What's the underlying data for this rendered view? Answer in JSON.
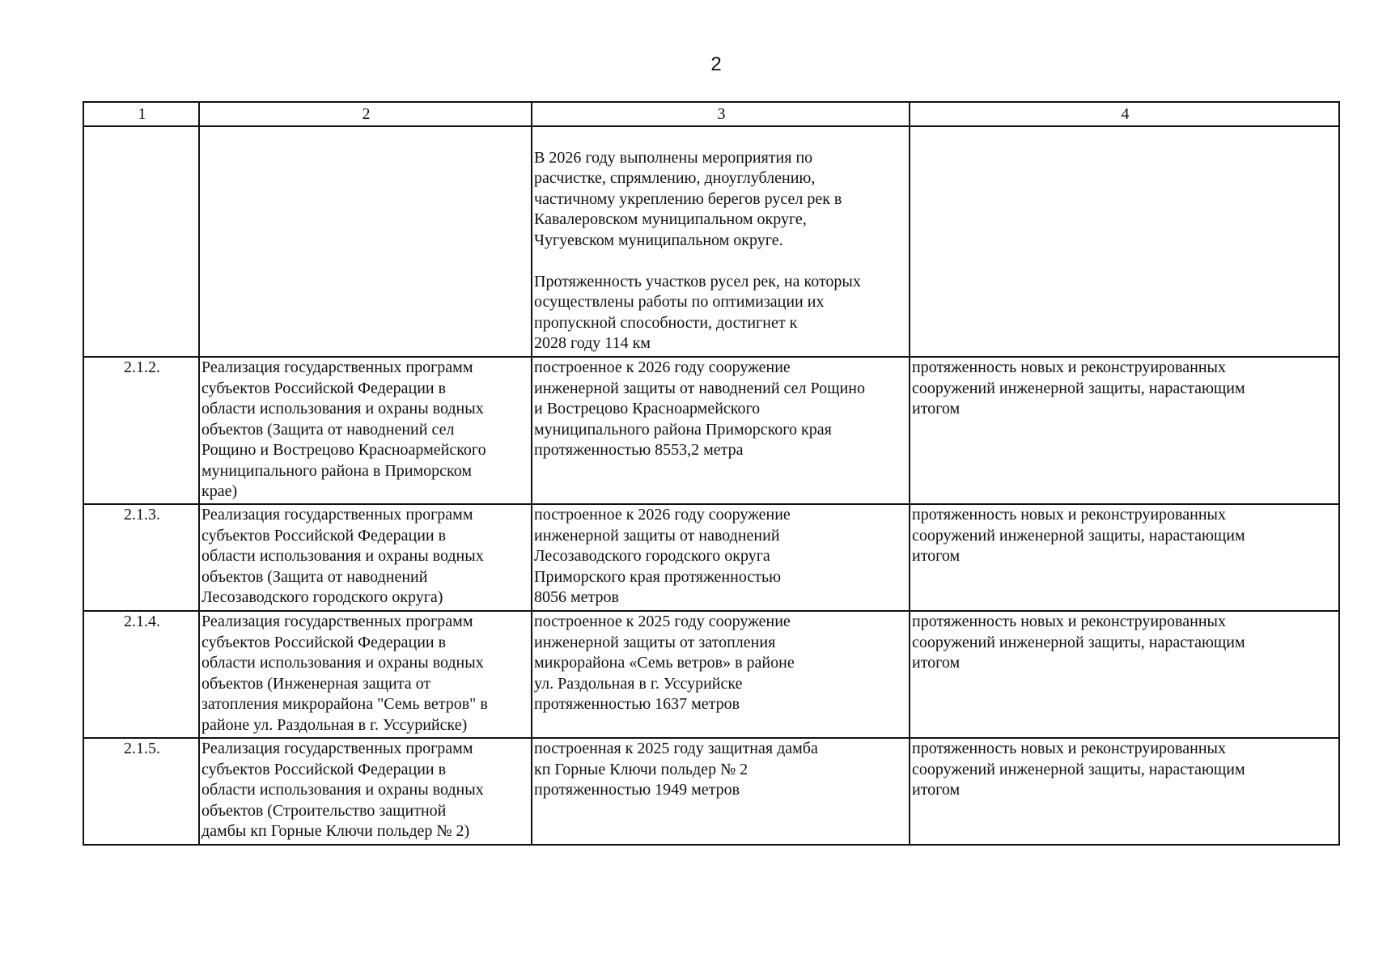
{
  "page_number": "2",
  "table": {
    "headers": [
      "1",
      "2",
      "3",
      "4"
    ],
    "rows": [
      {
        "number": "",
        "program": [],
        "result": [
          "",
          "В 2026 году выполнены мероприятия по",
          "расчистке, спрямлению, дноуглублению,",
          "частичному укреплению берегов русел рек в",
          "Кавалеровском муниципальном округе,",
          "Чугуевском муниципальном округе.",
          "",
          "Протяженность участков русел рек, на которых",
          "осуществлены работы по оптимизации их",
          "пропускной способности, достигнет к",
          "2028 году 114 км"
        ],
        "indicator": []
      },
      {
        "number": "2.1.2.",
        "program": [
          "Реализация государственных программ",
          "субъектов Российской Федерации в",
          "области использования и охраны водных",
          "объектов (Защита от наводнений сел",
          "Рощино и Вострецово Красноармейского",
          "муниципального района в Приморском",
          "крае)"
        ],
        "result": [
          "построенное к 2026 году сооружение",
          "инженерной защиты от наводнений сел Рощино",
          "и Вострецово Красноармейского",
          "муниципального района Приморского края",
          "протяженностью 8553,2 метра"
        ],
        "indicator": [
          "протяженность новых и реконструированных",
          "сооружений инженерной защиты, нарастающим",
          "итогом"
        ]
      },
      {
        "number": "2.1.3.",
        "program": [
          "Реализация государственных программ",
          "субъектов Российской Федерации в",
          "области использования и охраны водных",
          "объектов (Защита от наводнений",
          "Лесозаводского городского округа)"
        ],
        "result": [
          "построенное к 2026 году сооружение",
          "инженерной защиты от наводнений",
          "Лесозаводского городского округа",
          "Приморского края протяженностью",
          "8056 метров"
        ],
        "indicator": [
          "протяженность новых и реконструированных",
          "сооружений инженерной защиты, нарастающим",
          "итогом"
        ]
      },
      {
        "number": "2.1.4.",
        "program": [
          "Реализация государственных программ",
          "субъектов Российской Федерации в",
          "области использования и охраны водных",
          "объектов (Инженерная защита от",
          "затопления микрорайона \"Семь ветров\" в",
          "районе ул. Раздольная в г. Уссурийске)"
        ],
        "result": [
          "построенное к 2025 году сооружение",
          "инженерной защиты от затопления",
          "микрорайона «Семь ветров» в районе",
          "ул. Раздольная в г. Уссурийске",
          "протяженностью 1637 метров"
        ],
        "indicator": [
          "протяженность новых и реконструированных",
          "сооружений инженерной защиты, нарастающим",
          "итогом"
        ]
      },
      {
        "number": "2.1.5.",
        "program": [
          "Реализация государственных программ",
          "субъектов Российской Федерации в",
          "области использования и охраны водных",
          "объектов (Строительство защитной",
          "дамбы кп Горные Ключи польдер № 2)"
        ],
        "result": [
          "построенная к 2025 году защитная дамба",
          "кп Горные Ключи польдер № 2",
          "протяженностью 1949 метров"
        ],
        "indicator": [
          "протяженность новых и реконструированных",
          "сооружений инженерной защиты, нарастающим",
          "итогом"
        ]
      }
    ]
  }
}
